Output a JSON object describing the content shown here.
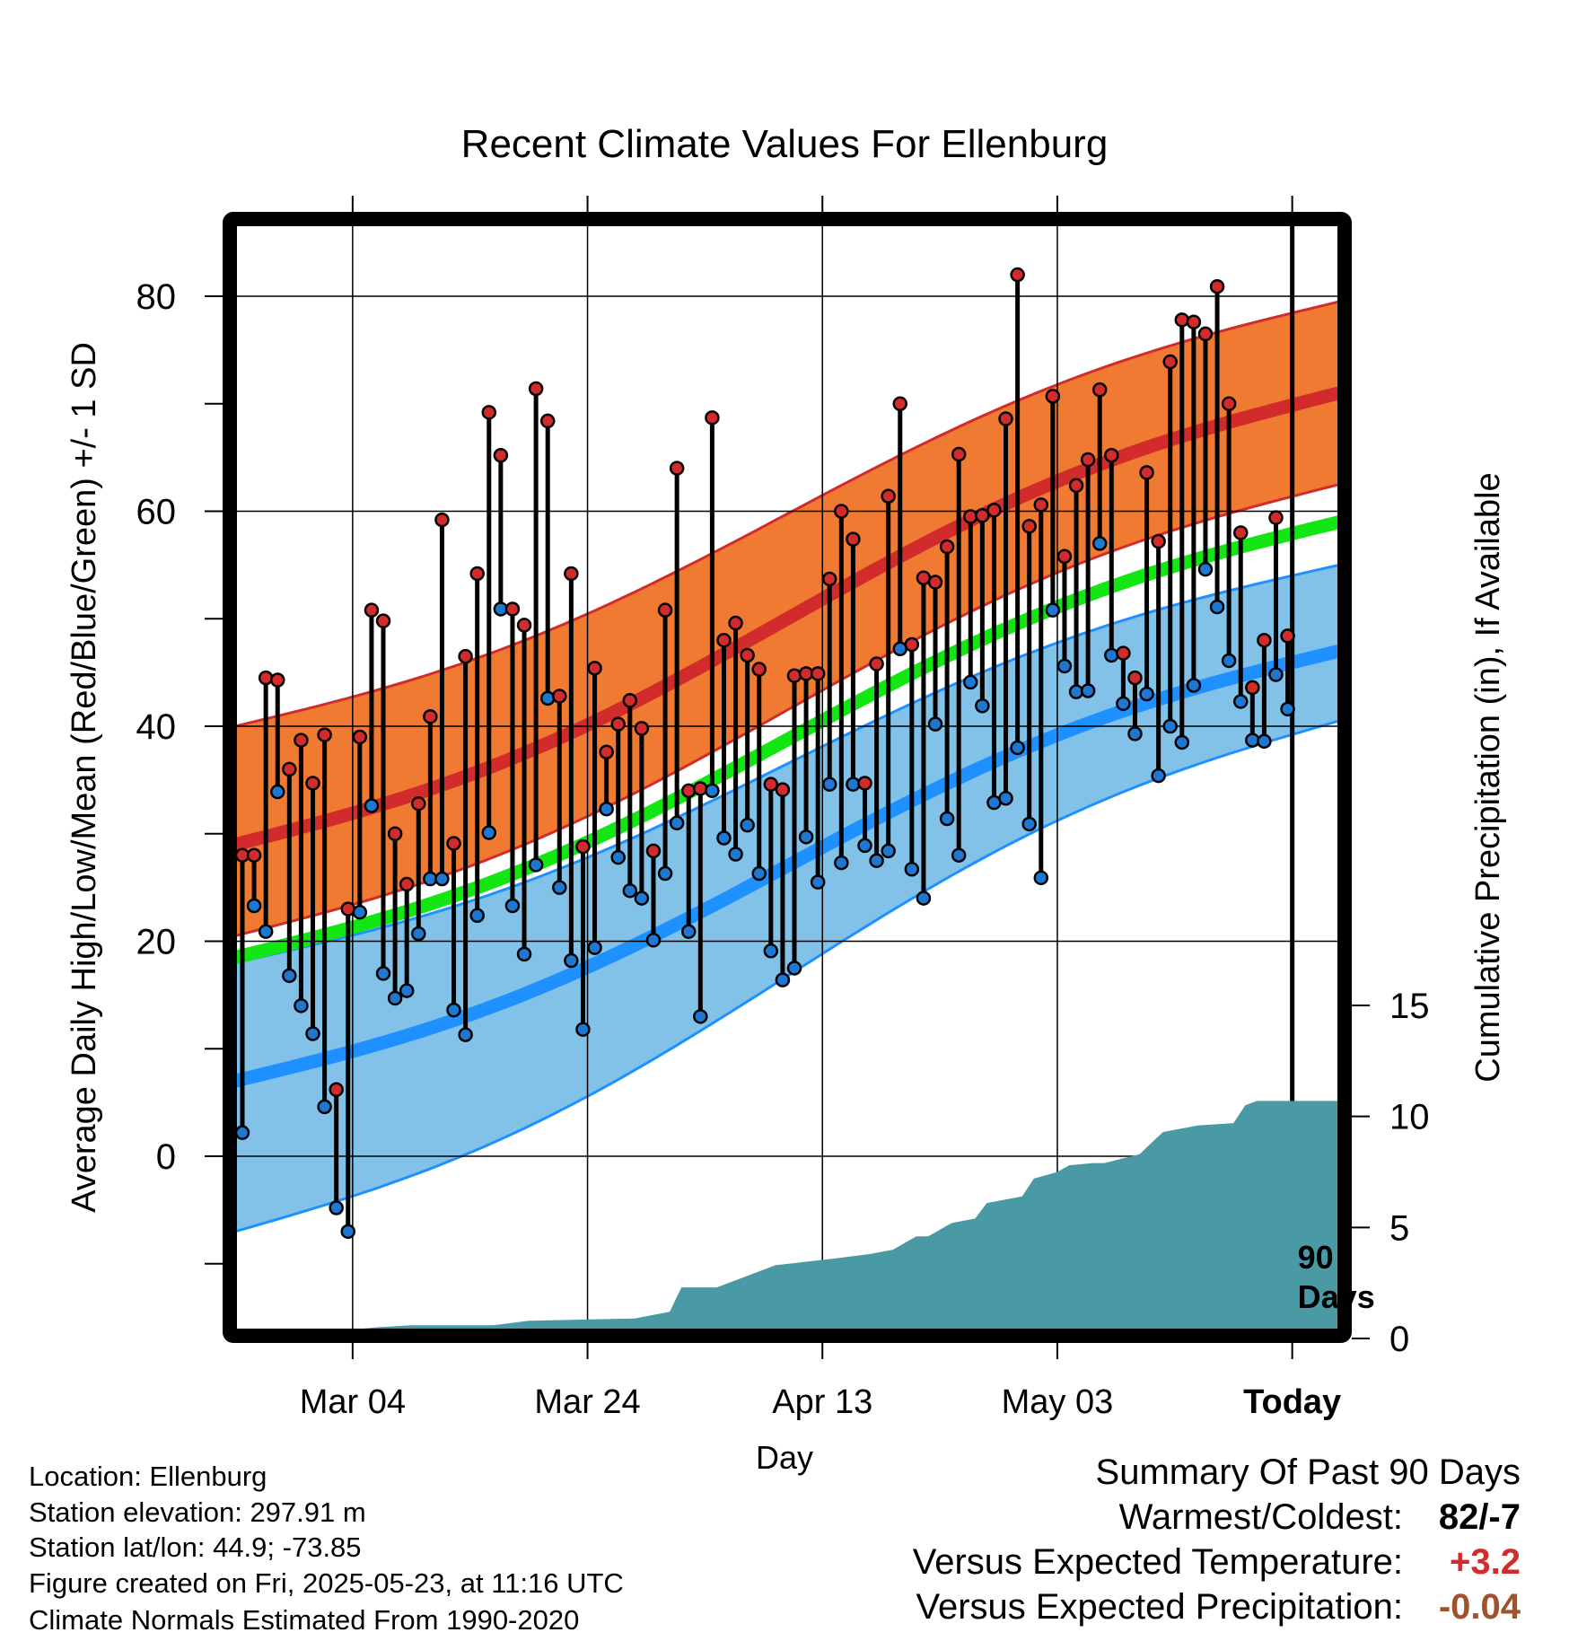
{
  "chart_data": {
    "type": "line",
    "title": "Recent Climate Values For Ellenburg",
    "xlabel": "Day",
    "ylabel": "Average Daily High/Low/Mean (Red/Blue/Green) +/- 1 SD",
    "y2label": "Cumulative Precipitation (in), If Available",
    "x_ticks": [
      "Mar 04",
      "Mar 24",
      "Apr 13",
      "May 03",
      "Today"
    ],
    "y_ticks": [
      0,
      20,
      40,
      60,
      80
    ],
    "y2_ticks": [
      0,
      5,
      10,
      15
    ],
    "ylim": [
      -16,
      86
    ],
    "y2lim": [
      0,
      30
    ],
    "marker_label": "90 Days",
    "colors": {
      "high_band": "#f07a32",
      "high_mean": "#d22b2b",
      "low_band": "#82c2e8",
      "low_mean": "#1e90ff",
      "mean": "#14e614",
      "precip": "#4a9aa5",
      "high_point": "#d22b2b",
      "low_point": "#1e78d2"
    },
    "normal_high": {
      "day": [
        0,
        100
      ],
      "mean": [
        29,
        71
      ],
      "upper": [
        40,
        79.5
      ],
      "lower": [
        20.5,
        62.5
      ]
    },
    "normal_low": {
      "day": [
        0,
        100
      ],
      "mean": [
        7,
        47
      ],
      "upper": [
        18,
        55
      ],
      "lower": [
        -7,
        40.5
      ]
    },
    "normal_mean": {
      "day": [
        0,
        100
      ],
      "mean": [
        18.5,
        59
      ]
    },
    "observed": {
      "day": [
        1,
        2,
        3,
        4,
        5,
        6,
        7,
        8,
        9,
        10,
        11,
        12,
        13,
        14,
        15,
        16,
        17,
        18,
        19,
        20,
        21,
        22,
        23,
        24,
        25,
        26,
        27,
        28,
        29,
        30,
        31,
        32,
        33,
        34,
        35,
        36,
        37,
        38,
        39,
        40,
        41,
        42,
        43,
        44,
        45,
        46,
        47,
        48,
        49,
        50,
        51,
        52,
        53,
        54,
        55,
        56,
        57,
        58,
        59,
        60,
        61,
        62,
        63,
        64,
        65,
        66,
        67,
        68,
        69,
        70,
        71,
        72,
        73,
        74,
        75,
        76,
        77,
        78,
        79,
        80,
        81,
        82,
        83,
        84,
        85,
        86,
        87,
        88,
        89,
        90
      ],
      "high": [
        28,
        28,
        44.5,
        44.3,
        36,
        38.7,
        34.7,
        39.2,
        6.2,
        23,
        39,
        50.8,
        49.8,
        30,
        25.3,
        32.8,
        40.9,
        59.2,
        29.1,
        46.5,
        54.2,
        69.2,
        65.2,
        50.9,
        49.4,
        71.4,
        68.4,
        42.8,
        54.2,
        28.8,
        45.4,
        37.6,
        40.2,
        42.4,
        39.8,
        28.4,
        50.8,
        64,
        34,
        34.2,
        68.7,
        48,
        49.6,
        46.6,
        45.3,
        34.6,
        34.1,
        44.7,
        44.9,
        44.9,
        53.7,
        60,
        57.4,
        34.7,
        45.8,
        61.4,
        70,
        47.6,
        53.8,
        53.4,
        56.7,
        65.3,
        59.5,
        59.6,
        60.1,
        68.6,
        82,
        58.6,
        60.6,
        70.7,
        55.8,
        62.4,
        64.8,
        71.3,
        65.2,
        46.8,
        44.5,
        63.6,
        57.2,
        73.9,
        77.8,
        77.6,
        76.5,
        80.9,
        70,
        58,
        43.6,
        48,
        59.4,
        48.4
      ],
      "low": [
        2.2,
        23.3,
        20.9,
        33.9,
        16.8,
        14,
        11.4,
        4.6,
        -4.8,
        -7,
        22.7,
        32.6,
        17,
        14.7,
        15.4,
        20.7,
        25.8,
        25.8,
        13.6,
        11.3,
        22.4,
        30.1,
        50.9,
        23.3,
        18.8,
        27.1,
        42.6,
        25,
        18.2,
        11.8,
        19.4,
        32.3,
        27.8,
        24.7,
        24,
        20.1,
        26.3,
        31,
        20.9,
        13,
        34,
        29.6,
        28.1,
        30.8,
        26.3,
        19.1,
        16.4,
        17.5,
        29.7,
        25.5,
        34.6,
        27.3,
        34.6,
        28.9,
        27.5,
        28.4,
        47.2,
        26.7,
        24,
        40.2,
        31.4,
        28,
        44.1,
        41.9,
        32.9,
        33.3,
        38,
        30.9,
        25.9,
        50.8,
        45.6,
        43.2,
        43.3,
        57,
        46.6,
        42.1,
        39.3,
        43,
        35.4,
        40,
        38.5,
        43.8,
        54.6,
        51.1,
        46.1,
        42.3,
        38.7,
        38.6,
        44.8,
        41.6
      ]
    },
    "precip_cumulative": {
      "day": [
        0,
        5,
        6,
        9,
        10,
        12,
        15,
        22,
        25,
        34,
        37,
        38,
        41,
        46,
        51,
        54,
        56,
        58,
        59,
        61,
        63,
        64,
        67,
        68,
        70,
        71,
        73,
        74,
        77,
        78,
        79,
        82,
        85,
        86,
        87,
        90,
        94
      ],
      "value": [
        0,
        0,
        0.1,
        0.1,
        0.4,
        0.5,
        0.6,
        0.6,
        0.8,
        0.9,
        1.2,
        2.3,
        2.3,
        3.3,
        3.6,
        3.8,
        4,
        4.6,
        4.6,
        5.2,
        5.4,
        6.1,
        6.4,
        7.2,
        7.5,
        7.8,
        7.9,
        7.9,
        8.3,
        8.8,
        9.3,
        9.6,
        9.7,
        10.5,
        10.7,
        10.7,
        10.7
      ]
    }
  },
  "info": {
    "location": "Location: Ellenburg",
    "elevation": "Station elevation: 297.91 m",
    "latlon": "Station lat/lon: 44.9; -73.85",
    "created": "Figure created on Fri, 2025-05-23, at 11:16 UTC",
    "normals": "Climate Normals Estimated From 1990-2020"
  },
  "summary": {
    "heading": "Summary Of Past 90 Days",
    "warmest_label": "Warmest/Coldest:",
    "warmest_value": "82/-7",
    "temp_label": "Versus Expected Temperature:",
    "temp_value": "+3.2",
    "temp_color": "#d22b2b",
    "precip_label": "Versus Expected Precipitation:",
    "precip_value": "-0.04",
    "precip_color": "#a0522d"
  }
}
